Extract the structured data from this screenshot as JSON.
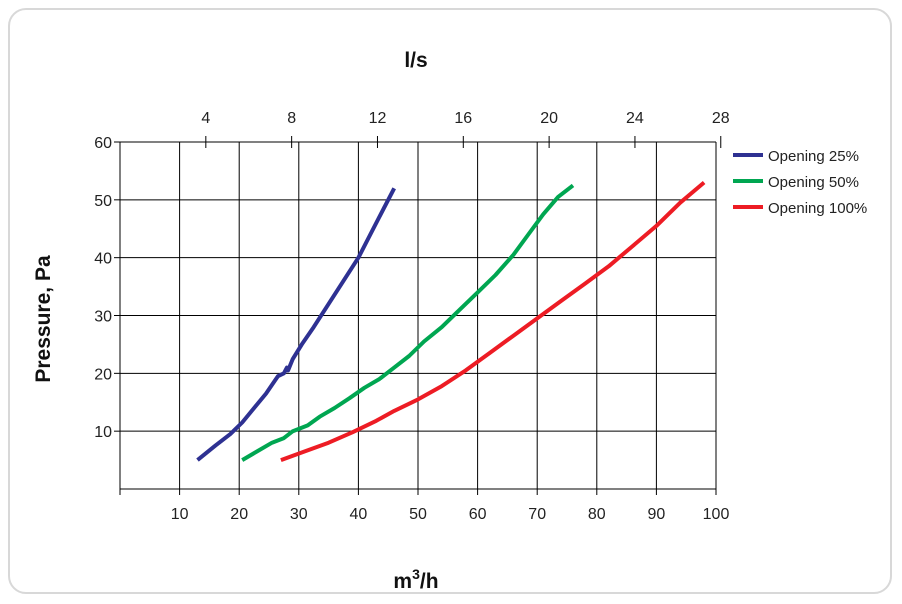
{
  "chart_data": {
    "type": "line",
    "title": "",
    "x_top_label": "l/s",
    "xlabel_base": "m",
    "xlabel_sup": "3",
    "xlabel_tail": "/h",
    "ylabel": "Pressure, Pa",
    "xlim": [
      0,
      100
    ],
    "ylim": [
      0,
      60
    ],
    "x_ticks": [
      10,
      20,
      30,
      40,
      50,
      60,
      70,
      80,
      90,
      100
    ],
    "y_ticks": [
      10,
      20,
      30,
      40,
      50,
      60
    ],
    "x_top_ticks": [
      4,
      8,
      12,
      16,
      20,
      24,
      28
    ],
    "x_top_factor": 3.6,
    "grid": true,
    "legend_position": "right",
    "series": [
      {
        "name": "Opening 25%",
        "color": "#2e3192",
        "x": [
          13,
          16,
          18.5,
          20.5,
          22.5,
          24.5,
          26.5,
          27.5,
          28,
          28.2,
          29,
          30.5,
          32.5,
          35,
          37.5,
          40,
          42,
          44,
          46
        ],
        "y": [
          5,
          7.5,
          9.5,
          11.5,
          14,
          16.5,
          19.5,
          20,
          21,
          20.5,
          22.5,
          25,
          28,
          32,
          36,
          40,
          44,
          48,
          52
        ]
      },
      {
        "name": "Opening 50%",
        "color": "#00a651",
        "x": [
          20.5,
          23,
          25.5,
          27.5,
          29,
          31.5,
          33.5,
          36,
          38.5,
          41,
          43.5,
          46,
          48.5,
          51,
          54,
          57,
          60,
          63,
          66,
          68.5,
          71,
          73.5,
          76
        ],
        "y": [
          5,
          6.5,
          8,
          8.8,
          10,
          11,
          12.5,
          14,
          15.7,
          17.5,
          19,
          21,
          23,
          25.5,
          28,
          31,
          34,
          37,
          40.5,
          44,
          47.5,
          50.5,
          52.5
        ]
      },
      {
        "name": "Opening 100%",
        "color": "#ed1c24",
        "x": [
          27,
          31,
          35,
          39,
          43,
          46,
          50,
          54,
          58,
          62,
          66,
          70,
          74,
          78,
          82,
          86,
          90,
          94,
          98
        ],
        "y": [
          5,
          6.5,
          8,
          9.8,
          11.8,
          13.5,
          15.5,
          17.8,
          20.5,
          23.5,
          26.5,
          29.5,
          32.5,
          35.5,
          38.5,
          42,
          45.5,
          49.5,
          53
        ]
      }
    ]
  }
}
